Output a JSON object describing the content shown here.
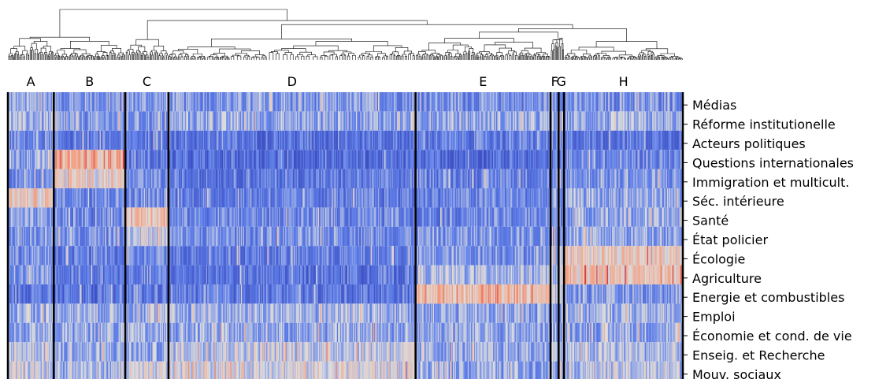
{
  "chart_data": {
    "type": "heatmap",
    "title": "",
    "xlabel": "",
    "ylabel": "",
    "colormap": "coolwarm",
    "colors": {
      "low": "#3b4cc0",
      "mid": "#dddddd",
      "high": "#b40426"
    },
    "dendrogram": "top",
    "grid": false,
    "legend": "none",
    "clusters": [
      {
        "label": "A",
        "start": 0.0,
        "end": 0.068
      },
      {
        "label": "B",
        "start": 0.068,
        "end": 0.174
      },
      {
        "label": "C",
        "start": 0.174,
        "end": 0.238
      },
      {
        "label": "D",
        "start": 0.238,
        "end": 0.604
      },
      {
        "label": "E",
        "start": 0.604,
        "end": 0.804
      },
      {
        "label": "F",
        "start": 0.804,
        "end": 0.816
      },
      {
        "label": "G",
        "start": 0.816,
        "end": 0.824
      },
      {
        "label": "H",
        "start": 0.824,
        "end": 1.0
      }
    ],
    "rows": [
      "Médias",
      "Réforme institutionelle",
      "Acteurs politiques",
      "Questions internationales",
      "Immigration et multicult.",
      "Séc. intérieure",
      "Santé",
      "État policier",
      "Écologie",
      "Agriculture",
      "Energie et combustibles",
      "Emploi",
      "Économie et cond. de vie",
      "Enseig. et Recherche",
      "Mouv. sociaux"
    ],
    "cluster_profile": [
      [
        0.35,
        0.3,
        0.32,
        0.3,
        0.28,
        0.32,
        0.3,
        0.28
      ],
      [
        0.38,
        0.3,
        0.3,
        0.35,
        0.35,
        0.35,
        0.35,
        0.35
      ],
      [
        0.25,
        0.2,
        0.22,
        0.18,
        0.22,
        0.2,
        0.2,
        0.2
      ],
      [
        0.35,
        0.68,
        0.2,
        0.15,
        0.15,
        0.2,
        0.2,
        0.25
      ],
      [
        0.3,
        0.55,
        0.25,
        0.2,
        0.25,
        0.25,
        0.25,
        0.3
      ],
      [
        0.58,
        0.28,
        0.25,
        0.22,
        0.25,
        0.3,
        0.3,
        0.35
      ],
      [
        0.3,
        0.25,
        0.65,
        0.25,
        0.25,
        0.3,
        0.3,
        0.35
      ],
      [
        0.3,
        0.3,
        0.45,
        0.28,
        0.3,
        0.3,
        0.3,
        0.35
      ],
      [
        0.28,
        0.2,
        0.25,
        0.22,
        0.3,
        0.45,
        0.45,
        0.58
      ],
      [
        0.3,
        0.2,
        0.22,
        0.18,
        0.4,
        0.4,
        0.4,
        0.6
      ],
      [
        0.2,
        0.18,
        0.2,
        0.2,
        0.65,
        0.45,
        0.45,
        0.3
      ],
      [
        0.38,
        0.38,
        0.38,
        0.38,
        0.35,
        0.35,
        0.35,
        0.38
      ],
      [
        0.35,
        0.35,
        0.35,
        0.35,
        0.35,
        0.35,
        0.35,
        0.35
      ],
      [
        0.45,
        0.35,
        0.35,
        0.45,
        0.35,
        0.4,
        0.4,
        0.4
      ],
      [
        0.45,
        0.4,
        0.45,
        0.5,
        0.35,
        0.4,
        0.4,
        0.42
      ]
    ]
  }
}
